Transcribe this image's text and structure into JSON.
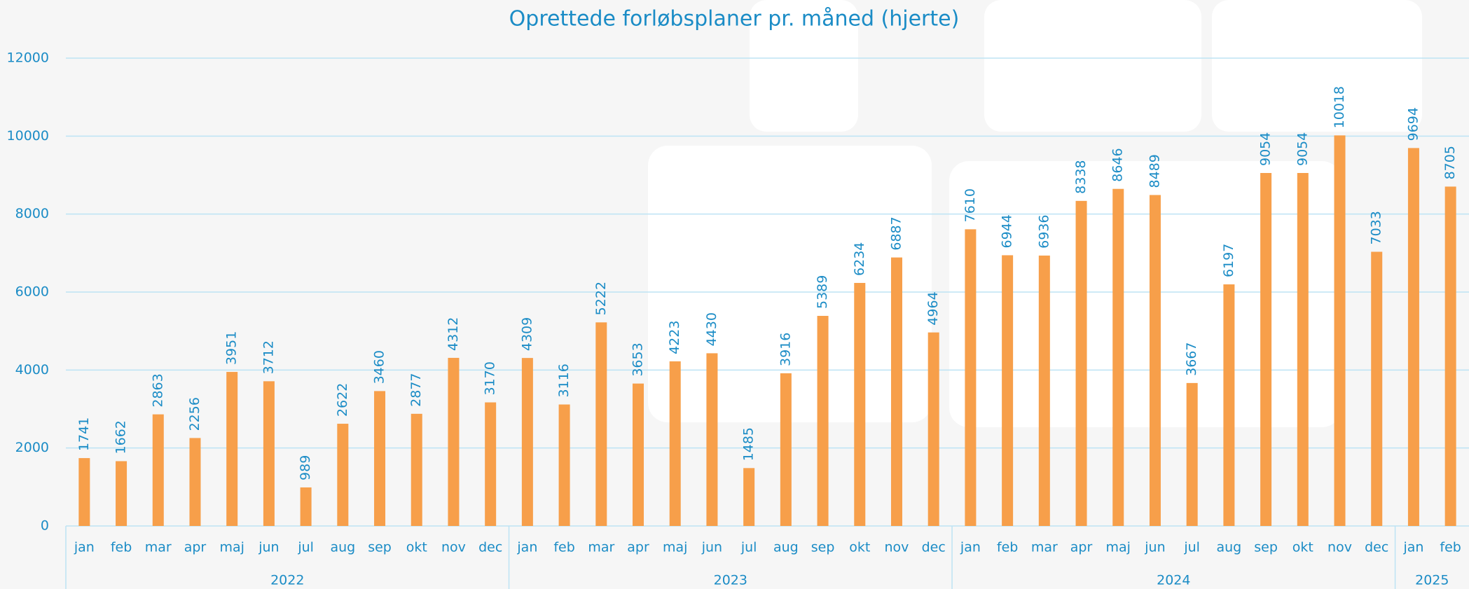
{
  "chart_data": {
    "type": "bar",
    "title": "Oprettede forløbsplaner pr. måned (hjerte)",
    "groups": [
      {
        "label": "2022",
        "categories": [
          "jan",
          "feb",
          "mar",
          "apr",
          "maj",
          "jun",
          "jul",
          "aug",
          "sep",
          "okt",
          "nov",
          "dec"
        ]
      },
      {
        "label": "2023",
        "categories": [
          "jan",
          "feb",
          "mar",
          "apr",
          "maj",
          "jun",
          "jul",
          "aug",
          "sep",
          "okt",
          "nov",
          "dec"
        ]
      },
      {
        "label": "2024",
        "categories": [
          "jan",
          "feb",
          "mar",
          "apr",
          "maj",
          "jun",
          "jul",
          "aug",
          "sep",
          "okt",
          "nov",
          "dec"
        ]
      },
      {
        "label": "2025",
        "categories": [
          "jan",
          "feb"
        ]
      }
    ],
    "values": [
      1741,
      1662,
      2863,
      2256,
      3951,
      3712,
      989,
      2622,
      3460,
      2877,
      4312,
      3170,
      4309,
      3116,
      5222,
      3653,
      4223,
      4430,
      1485,
      3916,
      5389,
      6234,
      6887,
      4964,
      7610,
      6944,
      6936,
      8338,
      8646,
      8489,
      3667,
      6197,
      9054,
      9054,
      10018,
      7033,
      9694,
      8705
    ],
    "color": "#f79f4a",
    "ylim": [
      0,
      12000
    ],
    "yticks": [
      0,
      2000,
      4000,
      6000,
      8000,
      10000,
      12000
    ],
    "grid": true
  }
}
